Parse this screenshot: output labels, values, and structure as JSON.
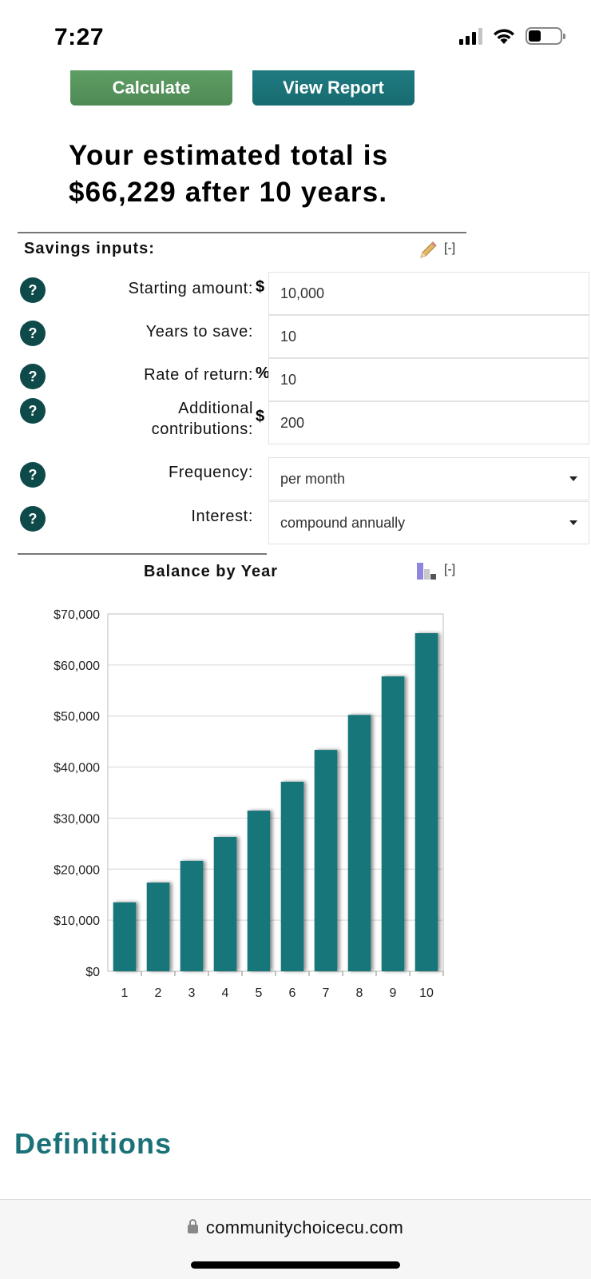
{
  "status": {
    "time": "7:27"
  },
  "buttons": {
    "calculate": "Calculate",
    "view_report": "View Report"
  },
  "headline": "Your estimated total is $66,229 after 10 years.",
  "inputs": {
    "title": "Savings inputs:",
    "collapse": "[-]",
    "help": "?",
    "starting_amount": {
      "label": "Starting amount:",
      "unit": "$",
      "value": "10,000"
    },
    "years_to_save": {
      "label": "Years to save:",
      "value": "10"
    },
    "rate_of_return": {
      "label": "Rate of return:",
      "unit": "%",
      "value": "10"
    },
    "additional": {
      "label_1": "Additional",
      "label_2": "contributions:",
      "unit": "$",
      "value": "200"
    },
    "frequency": {
      "label": "Frequency:",
      "value": "per month"
    },
    "interest": {
      "label": "Interest:",
      "value": "compound annually"
    }
  },
  "chart_section": {
    "title": "Balance by Year",
    "collapse": "[-]"
  },
  "chart_data": {
    "type": "bar",
    "title": "Balance by Year",
    "categories": [
      "1",
      "2",
      "3",
      "4",
      "5",
      "6",
      "7",
      "8",
      "9",
      "10"
    ],
    "values": [
      13500,
      17370,
      21627,
      26310,
      31461,
      37127,
      43360,
      50216,
      57758,
      66229
    ],
    "ylim": [
      0,
      70000
    ],
    "yticks": [
      "$0",
      "$10,000",
      "$20,000",
      "$30,000",
      "$40,000",
      "$50,000",
      "$60,000",
      "$70,000"
    ],
    "grid": true,
    "bar_color": "#17767a"
  },
  "definitions": "Definitions",
  "browser": {
    "url": "communitychoicecu.com"
  },
  "colors": {
    "calculate": "#57935d",
    "view_report": "#1b7378",
    "help": "#0e4a4a",
    "accent": "#1a7177"
  }
}
